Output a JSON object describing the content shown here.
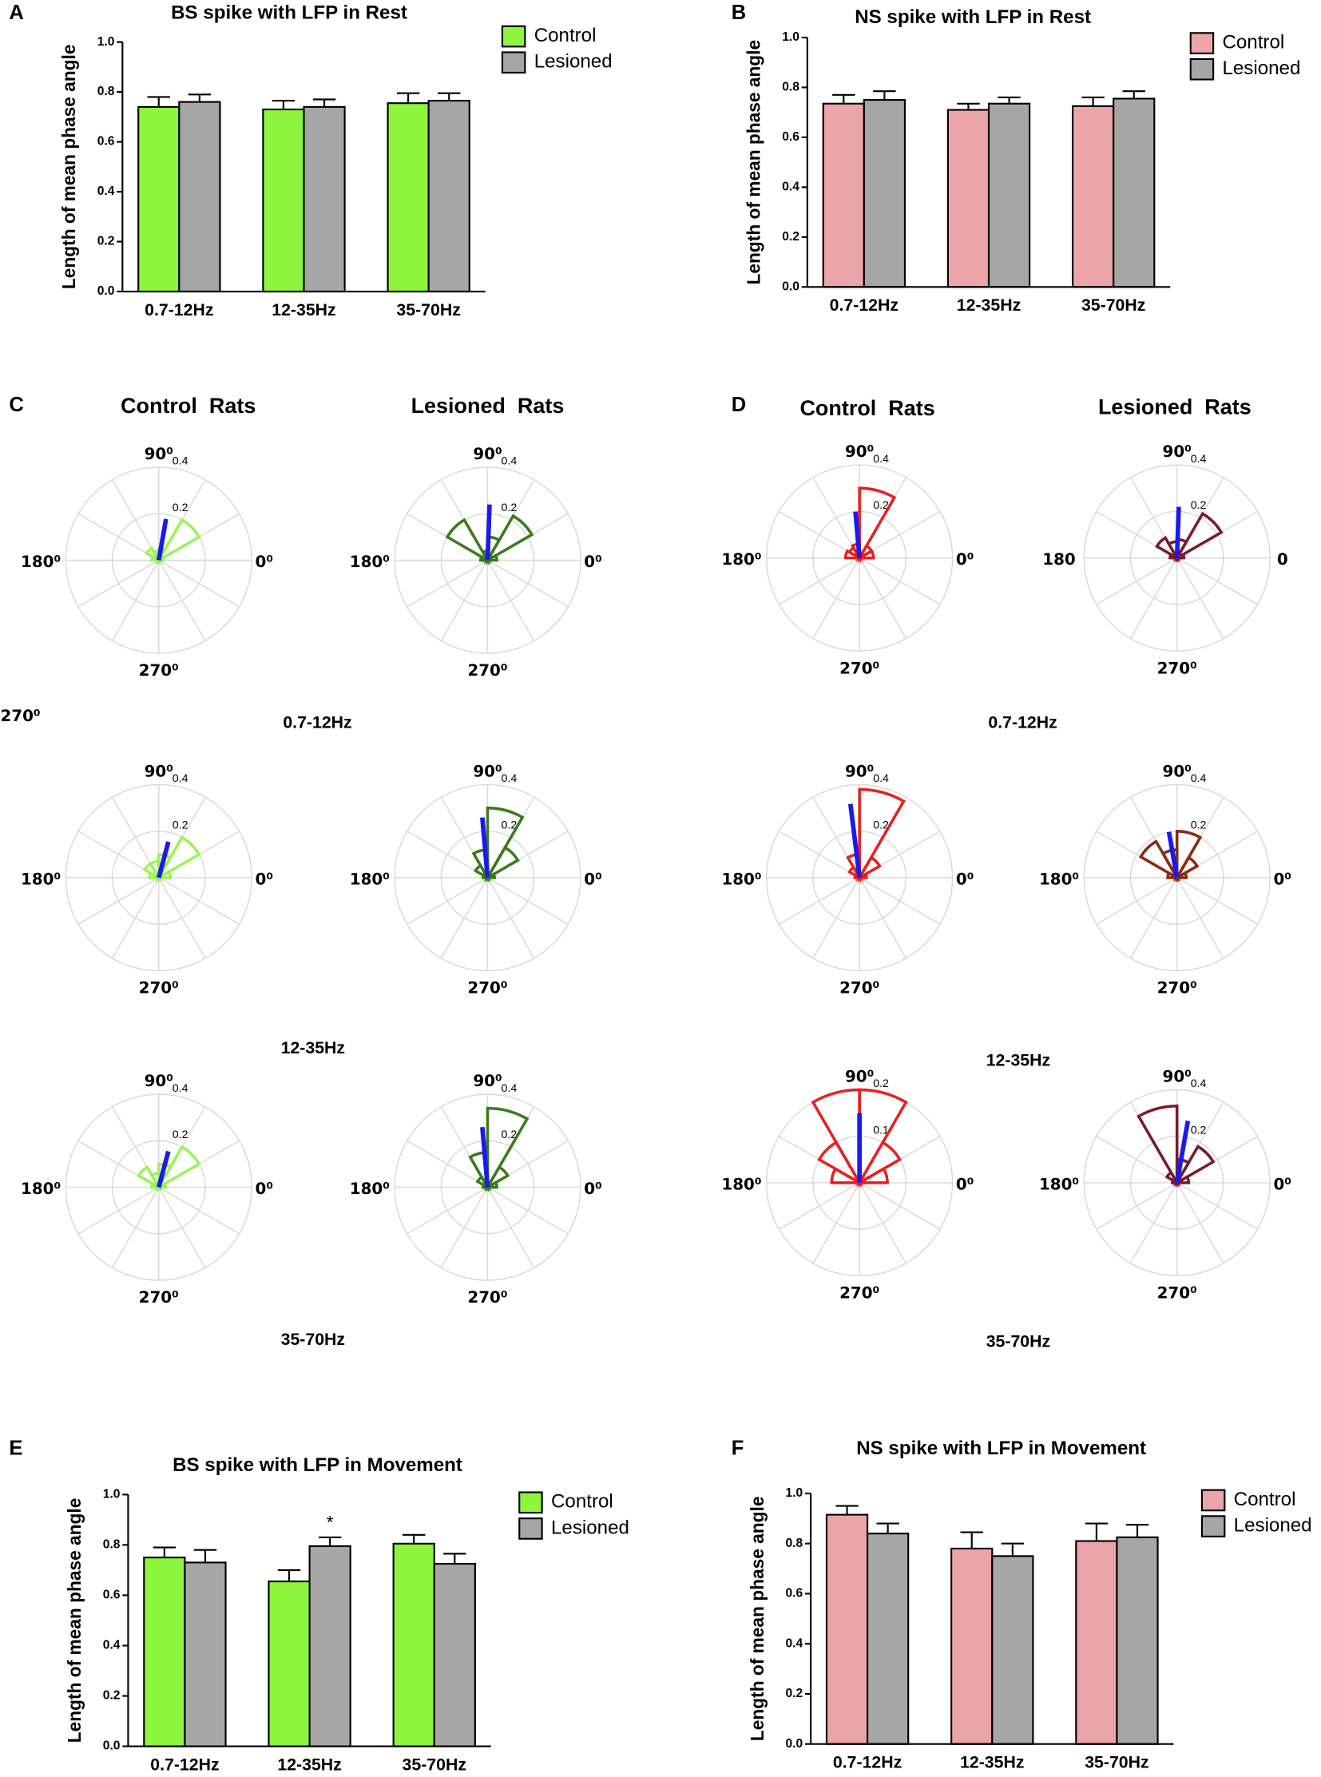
{
  "figure": {
    "panel_labels": [
      "C",
      "D"
    ],
    "group_headers": [
      "Control  Rats",
      "Lesioned  Rats",
      "Control  Rats",
      "Lesioned  Rats"
    ],
    "band_labels": [
      "0.7-12Hz",
      "12-35Hz",
      "35-70Hz",
      "0.7-12Hz",
      "12-35Hz",
      "35-70Hz"
    ],
    "stray_label": "270⁰"
  },
  "chart_data": [
    {
      "type": "bar",
      "panel": "A",
      "title": "BS spike with LFP in Rest",
      "ylabel": "Length of mean phase angle",
      "categories": [
        "0.7-12Hz",
        "12-35Hz",
        "35-70Hz"
      ],
      "series": [
        {
          "name": "Control",
          "color": "#8cf53c",
          "values": [
            0.74,
            0.73,
            0.755
          ],
          "errors": [
            0.04,
            0.035,
            0.04
          ]
        },
        {
          "name": "Lesioned",
          "color": "#a6a6a6",
          "values": [
            0.76,
            0.74,
            0.765
          ],
          "errors": [
            0.03,
            0.03,
            0.03
          ]
        }
      ],
      "ylim": [
        0,
        1
      ],
      "yticks": [
        {
          "value": 0,
          "label": "0.0"
        },
        0.2,
        0.4,
        0.6,
        0.8,
        {
          "value": 1,
          "label": "1.0"
        }
      ]
    },
    {
      "type": "bar",
      "panel": "B",
      "title": "NS spike with LFP in Rest",
      "ylabel": "Length of mean phase angle",
      "categories": [
        "0.7-12Hz",
        "12-35Hz",
        "35-70Hz"
      ],
      "series": [
        {
          "name": "Control",
          "color": "#eba4a8",
          "values": [
            0.735,
            0.71,
            0.725
          ],
          "errors": [
            0.035,
            0.025,
            0.035
          ]
        },
        {
          "name": "Lesioned",
          "color": "#a6a6a6",
          "values": [
            0.75,
            0.735,
            0.755
          ],
          "errors": [
            0.035,
            0.025,
            0.03
          ]
        }
      ],
      "ylim": [
        0,
        1
      ],
      "yticks": [
        {
          "value": 0,
          "label": "0.0"
        },
        0.2,
        0.4,
        0.6,
        0.8,
        {
          "value": 1,
          "label": "1.0"
        }
      ]
    },
    {
      "type": "polar",
      "color": "#99f455",
      "values": [
        0.02,
        0.2,
        0.05,
        0.04,
        0.06,
        0.03,
        0,
        0,
        0,
        0,
        0,
        0
      ],
      "mean": {
        "angle": 80,
        "length": 0.18
      },
      "mean_color": "#1a1aee",
      "rlim": [
        0,
        0.4
      ],
      "rticks": [
        0.2,
        0.4
      ],
      "angle_labels": [
        "0⁰",
        "90⁰",
        "180⁰",
        "270⁰"
      ]
    },
    {
      "type": "polar",
      "color": "#3a7a1a",
      "values": [
        0.04,
        0.22,
        0.1,
        0.04,
        0.2,
        0.03,
        0,
        0,
        0,
        0,
        0,
        0
      ],
      "mean": {
        "angle": 88,
        "length": 0.24
      },
      "mean_color": "#1a1aee",
      "rlim": [
        0,
        0.4
      ],
      "rticks": [
        0.2,
        0.4
      ],
      "angle_labels": [
        "0⁰",
        "90⁰",
        "180⁰",
        "270⁰"
      ]
    },
    {
      "type": "polar",
      "color": "#e82020",
      "values": [
        0.06,
        0.06,
        0.3,
        0.06,
        0.05,
        0.06,
        0,
        0,
        0,
        0,
        0,
        0
      ],
      "mean": {
        "angle": 95,
        "length": 0.2
      },
      "mean_color": "#1a1aee",
      "rlim": [
        0,
        0.4
      ],
      "rticks": [
        0.2,
        0.4
      ],
      "angle_labels": [
        "0⁰",
        "90⁰",
        "180⁰",
        "270⁰"
      ]
    },
    {
      "type": "polar",
      "color": "#7a1a2a",
      "values": [
        0.03,
        0.22,
        0.08,
        0.07,
        0.1,
        0.03,
        0,
        0,
        0,
        0,
        0,
        0
      ],
      "mean": {
        "angle": 88,
        "length": 0.22
      },
      "mean_color": "#1a1aee",
      "rlim": [
        0,
        0.4
      ],
      "rticks": [
        0.2,
        0.4
      ],
      "angle_labels": [
        "0",
        "90⁰",
        "180",
        "270⁰"
      ]
    },
    {
      "type": "polar",
      "color": "#99f455",
      "values": [
        0.05,
        0.2,
        0.1,
        0.07,
        0.07,
        0.04,
        0,
        0,
        0,
        0,
        0,
        0
      ],
      "mean": {
        "angle": 75,
        "length": 0.16
      },
      "mean_color": "#1a1aee",
      "rlim": [
        0,
        0.4
      ],
      "rticks": [
        0.2,
        0.4
      ],
      "angle_labels": [
        "0⁰",
        "90⁰",
        "180⁰",
        "270⁰"
      ]
    },
    {
      "type": "polar",
      "color": "#3a7a1a",
      "values": [
        0.03,
        0.15,
        0.3,
        0.12,
        0.06,
        0.02,
        0,
        0,
        0,
        0,
        0,
        0
      ],
      "mean": {
        "angle": 95,
        "length": 0.26
      },
      "mean_color": "#1a1aee",
      "rlim": [
        0,
        0.4
      ],
      "rticks": [
        0.2,
        0.4
      ],
      "angle_labels": [
        "0⁰",
        "90⁰",
        "180⁰",
        "270⁰"
      ]
    },
    {
      "type": "polar",
      "color": "#e82020",
      "values": [
        0.03,
        0.1,
        0.38,
        0.1,
        0.05,
        0.02,
        0,
        0,
        0,
        0,
        0,
        0
      ],
      "mean": {
        "angle": 97,
        "length": 0.32
      },
      "mean_color": "#1a1aee",
      "rlim": [
        0,
        0.4
      ],
      "rticks": [
        0.2,
        0.4
      ],
      "angle_labels": [
        "0⁰",
        "90⁰",
        "180⁰",
        "270⁰"
      ]
    },
    {
      "type": "polar",
      "color": "#8a2a10",
      "values": [
        0.04,
        0.1,
        0.2,
        0.12,
        0.18,
        0.04,
        0,
        0,
        0,
        0,
        0,
        0
      ],
      "mean": {
        "angle": 100,
        "length": 0.2
      },
      "mean_color": "#1a1aee",
      "rlim": [
        0,
        0.4
      ],
      "rticks": [
        0.2,
        0.4
      ],
      "angle_labels": [
        "0⁰",
        "90⁰",
        "180⁰",
        "270⁰"
      ]
    },
    {
      "type": "polar",
      "color": "#99f455",
      "values": [
        0.03,
        0.2,
        0.1,
        0.06,
        0.1,
        0.03,
        0,
        0,
        0,
        0,
        0,
        0
      ],
      "mean": {
        "angle": 75,
        "length": 0.16
      },
      "mean_color": "#1a1aee",
      "rlim": [
        0,
        0.4
      ],
      "rticks": [
        0.2,
        0.4
      ],
      "angle_labels": [
        "0⁰",
        "90⁰",
        "180⁰",
        "270⁰"
      ]
    },
    {
      "type": "polar",
      "color": "#3a7a1a",
      "values": [
        0.04,
        0.1,
        0.34,
        0.15,
        0.05,
        0.02,
        0,
        0,
        0,
        0,
        0,
        0
      ],
      "mean": {
        "angle": 95,
        "length": 0.26
      },
      "mean_color": "#1a1aee",
      "rlim": [
        0,
        0.4
      ],
      "rticks": [
        0.2,
        0.4
      ],
      "angle_labels": [
        "0⁰",
        "90⁰",
        "180⁰",
        "270⁰"
      ]
    },
    {
      "type": "polar",
      "color": "#e82020",
      "values": [
        0.06,
        0.1,
        0.2,
        0.2,
        0.1,
        0.06,
        0,
        0,
        0,
        0,
        0,
        0
      ],
      "mean": {
        "angle": 90,
        "length": 0.15
      },
      "mean_color": "#1a1aee",
      "rlim": [
        0,
        0.2
      ],
      "rticks": [
        0.1,
        0.2
      ],
      "angle_labels": [
        "0⁰",
        "90⁰",
        "180⁰",
        "270⁰"
      ]
    },
    {
      "type": "polar",
      "color": "#7a1a2a",
      "values": [
        0.05,
        0.18,
        0.1,
        0.33,
        0.05,
        0.02,
        0,
        0,
        0,
        0,
        0,
        0
      ],
      "mean": {
        "angle": 80,
        "length": 0.27
      },
      "mean_color": "#1a1aee",
      "rlim": [
        0,
        0.4
      ],
      "rticks": [
        0.2,
        0.4
      ],
      "angle_labels": [
        "0⁰",
        "90⁰",
        "180⁰",
        "270⁰"
      ]
    },
    {
      "type": "bar",
      "panel": "E",
      "title": "BS spike with LFP in Movement",
      "ylabel": "Length of mean phase angle",
      "categories": [
        "0.7-12Hz",
        "12-35Hz",
        "35-70Hz"
      ],
      "series": [
        {
          "name": "Control",
          "color": "#8cf53c",
          "values": [
            0.75,
            0.655,
            0.805
          ],
          "errors": [
            0.04,
            0.045,
            0.035
          ]
        },
        {
          "name": "Lesioned",
          "color": "#a6a6a6",
          "values": [
            0.73,
            0.795,
            0.725
          ],
          "errors": [
            0.05,
            0.035,
            0.04
          ]
        }
      ],
      "ylim": [
        0,
        1
      ],
      "yticks": [
        {
          "value": 0,
          "label": "0.0"
        },
        0.2,
        0.4,
        0.6,
        0.8,
        {
          "value": 1,
          "label": "1.0"
        }
      ],
      "annotations": [
        {
          "text": "*",
          "category": "12-35Hz",
          "series": "Lesioned"
        }
      ]
    },
    {
      "type": "bar",
      "panel": "F",
      "title": "NS spike with LFP in Movement",
      "ylabel": "Length of mean phase angle",
      "categories": [
        "0.7-12Hz",
        "12-35Hz",
        "35-70Hz"
      ],
      "series": [
        {
          "name": "Control",
          "color": "#eba4a8",
          "values": [
            0.915,
            0.78,
            0.81
          ],
          "errors": [
            0.035,
            0.065,
            0.07
          ]
        },
        {
          "name": "Lesioned",
          "color": "#a6a6a6",
          "values": [
            0.84,
            0.75,
            0.825
          ],
          "errors": [
            0.04,
            0.05,
            0.05
          ]
        }
      ],
      "ylim": [
        0,
        1
      ],
      "yticks": [
        {
          "value": 0,
          "label": "0.0"
        },
        0.2,
        0.4,
        0.6,
        0.8,
        {
          "value": 1,
          "label": "1.0"
        }
      ]
    }
  ]
}
